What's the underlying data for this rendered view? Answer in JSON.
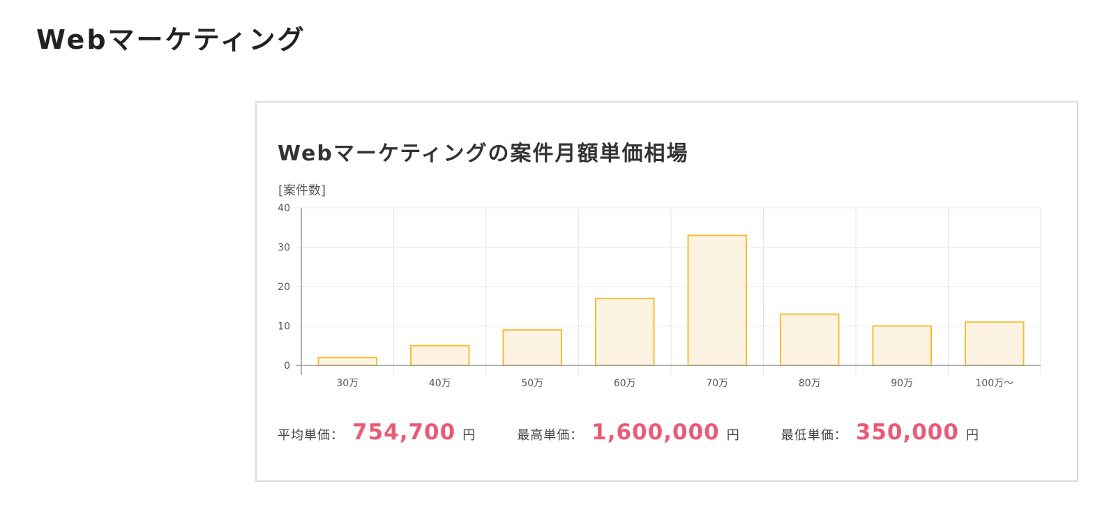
{
  "page": {
    "heading": "Webマーケティング"
  },
  "card": {
    "title": "Webマーケティングの案件月額単価相場"
  },
  "chart_data": {
    "type": "bar",
    "title": "Webマーケティングの案件月額単価相場",
    "ylabel": "[案件数]",
    "xlabel": "",
    "categories": [
      "30万",
      "40万",
      "50万",
      "60万",
      "70万",
      "80万",
      "90万",
      "100万〜"
    ],
    "values": [
      2,
      5,
      9,
      17,
      33,
      13,
      10,
      11
    ],
    "ylim": [
      0,
      40
    ],
    "yticks": [
      0,
      10,
      20,
      30,
      40
    ],
    "grid": true,
    "bar_fill": "#fcf3e3",
    "bar_stroke": "#f9bd33"
  },
  "stats": [
    {
      "label": "平均単価：",
      "value": "754,700",
      "unit": "円"
    },
    {
      "label": "最高単価：",
      "value": "1,600,000",
      "unit": "円"
    },
    {
      "label": "最低単価：",
      "value": "350,000",
      "unit": "円"
    }
  ],
  "colors": {
    "accent_value": "#ea5b76",
    "grid": "#e6e6e6",
    "axis": "#999999"
  }
}
